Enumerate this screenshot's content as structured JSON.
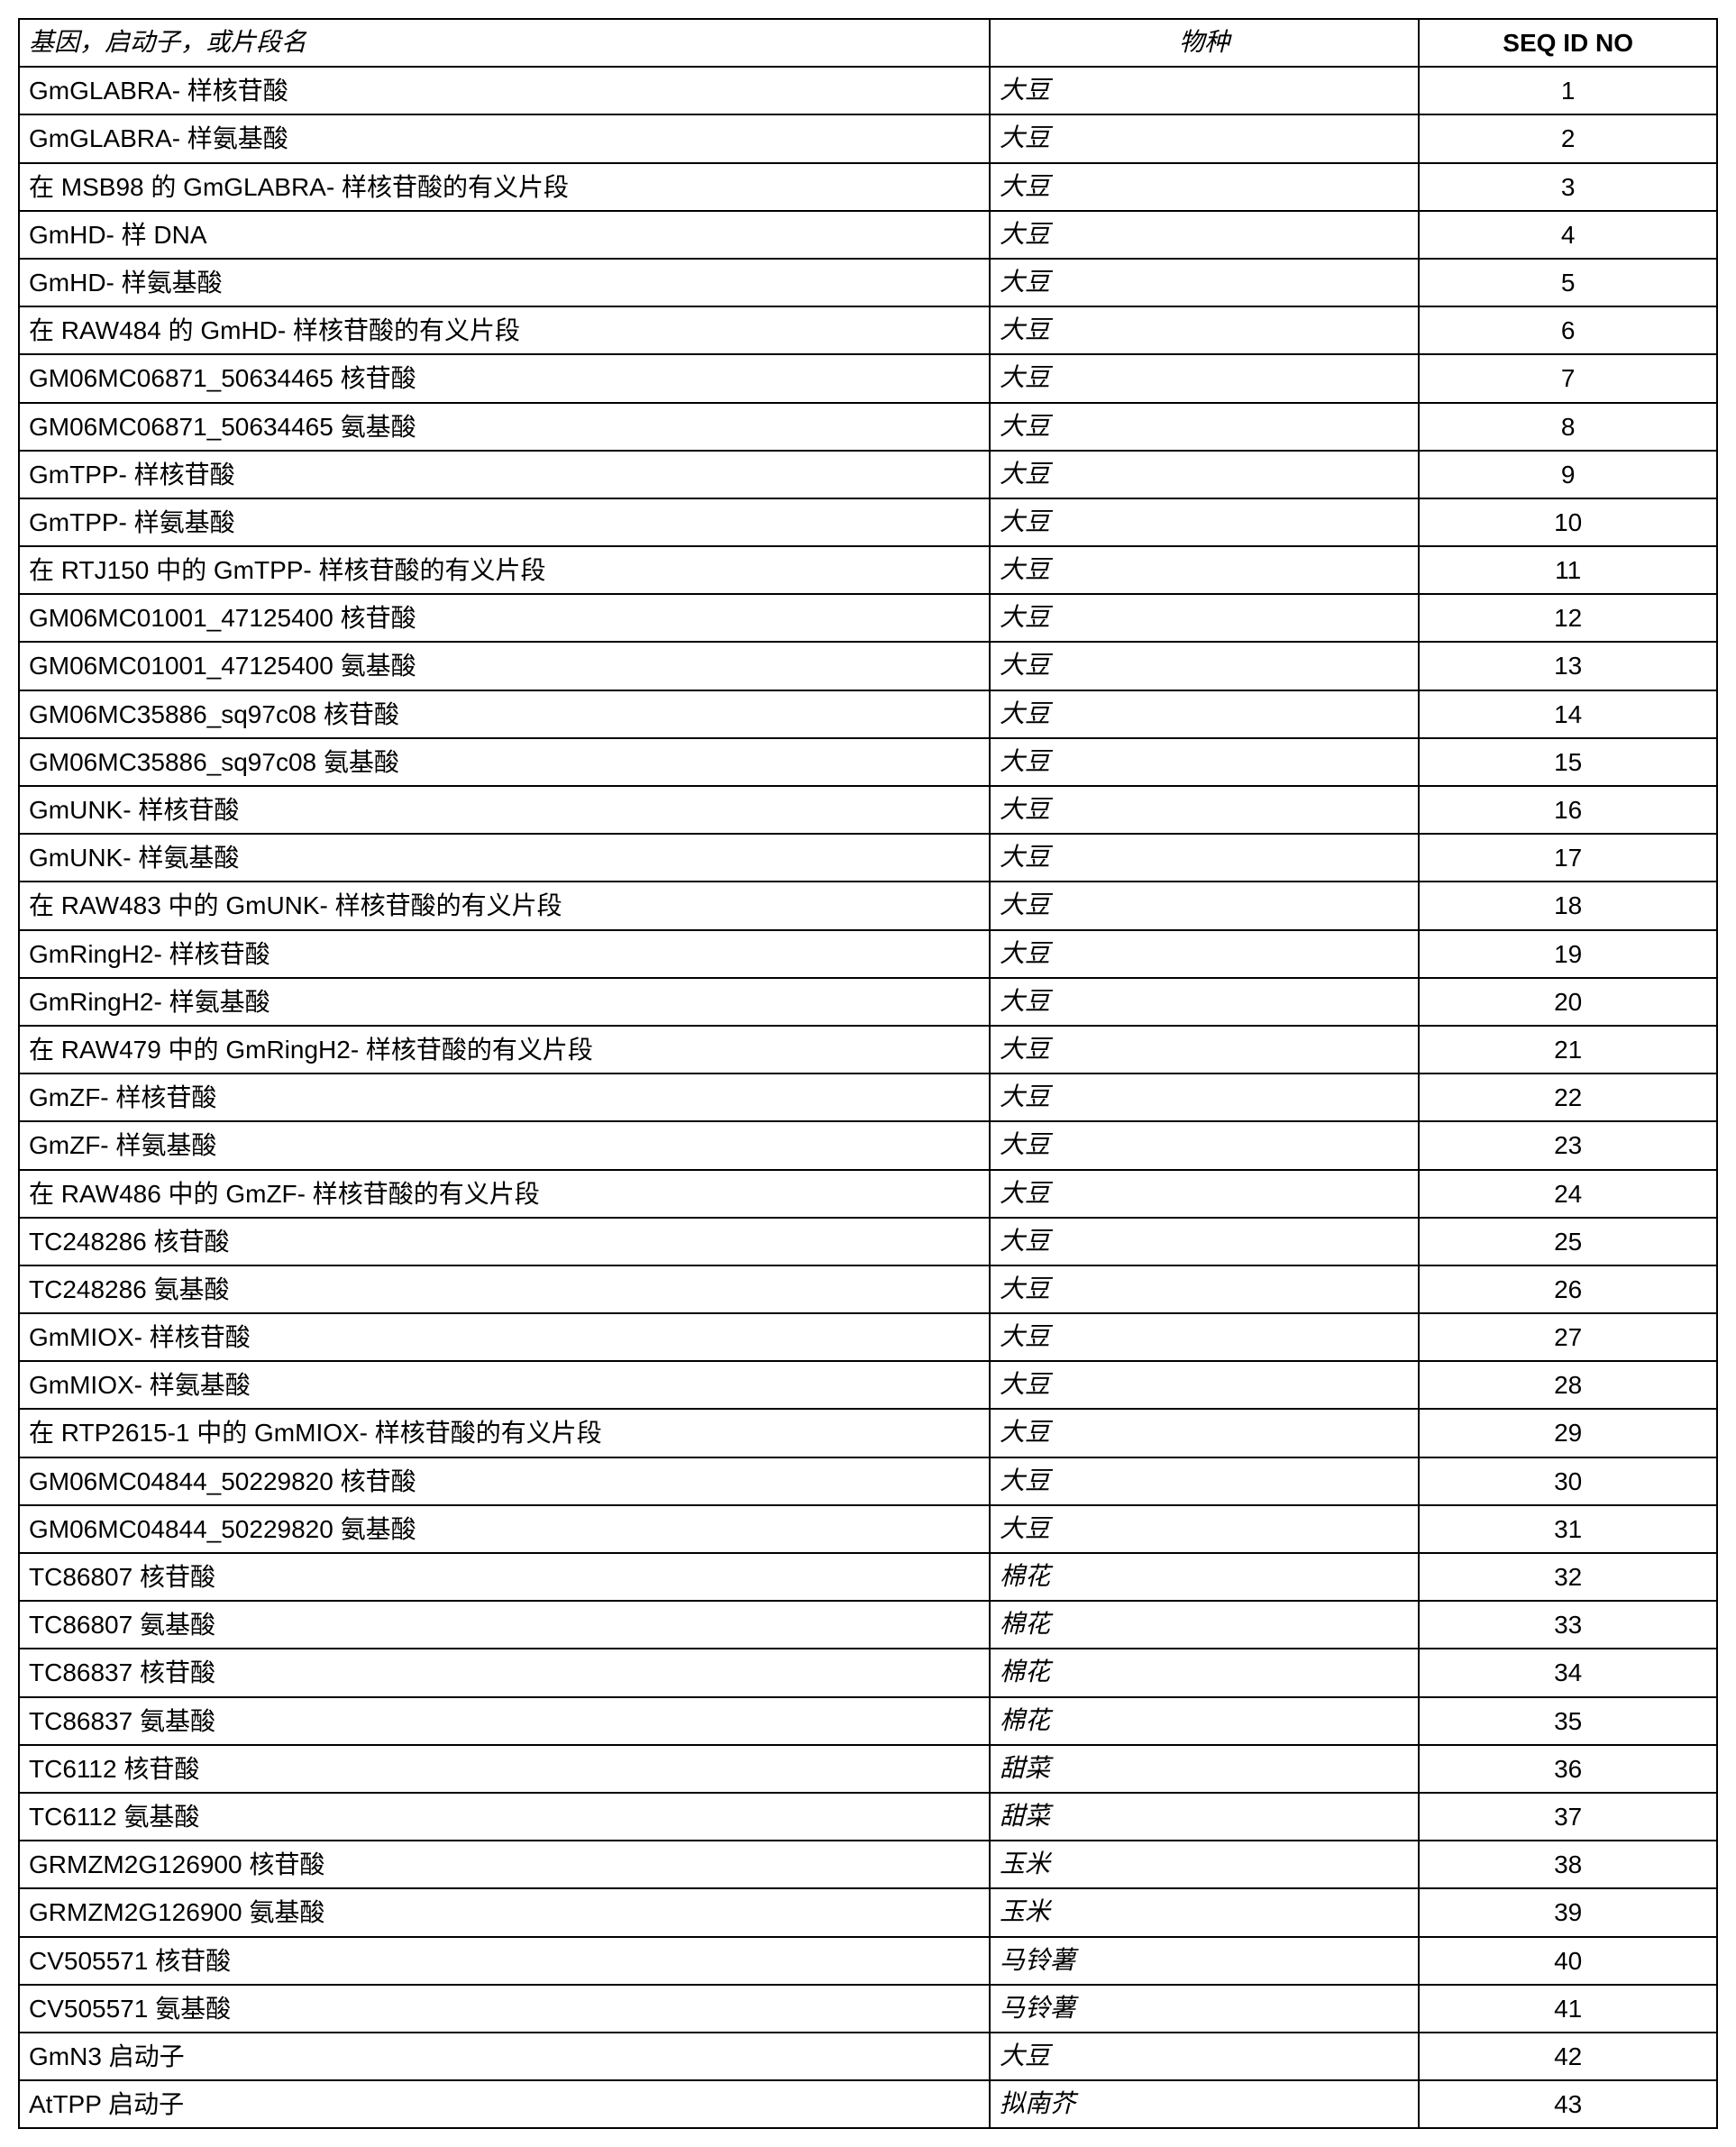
{
  "table": {
    "headers": {
      "name": "基因，启动子，或片段名",
      "species": "物种",
      "seq": "SEQ ID NO"
    },
    "rows": [
      {
        "name": "GmGLABRA- 样核苷酸",
        "species": "大豆",
        "seq": "1"
      },
      {
        "name": "GmGLABRA- 样氨基酸",
        "species": "大豆",
        "seq": "2"
      },
      {
        "name": "在 MSB98 的 GmGLABRA- 样核苷酸的有义片段",
        "species": "大豆",
        "seq": "3"
      },
      {
        "name": "GmHD- 样 DNA",
        "species": "大豆",
        "seq": "4"
      },
      {
        "name": "GmHD- 样氨基酸",
        "species": "大豆",
        "seq": "5"
      },
      {
        "name": "在 RAW484 的 GmHD- 样核苷酸的有义片段",
        "species": "大豆",
        "seq": "6"
      },
      {
        "name": "GM06MC06871_50634465 核苷酸",
        "species": "大豆",
        "seq": "7"
      },
      {
        "name": "GM06MC06871_50634465 氨基酸",
        "species": "大豆",
        "seq": "8"
      },
      {
        "name": "GmTPP- 样核苷酸",
        "species": "大豆",
        "seq": "9"
      },
      {
        "name": "GmTPP- 样氨基酸",
        "species": "大豆",
        "seq": "10"
      },
      {
        "name": "在 RTJ150 中的 GmTPP- 样核苷酸的有义片段",
        "species": "大豆",
        "seq": "11"
      },
      {
        "name": "GM06MC01001_47125400 核苷酸",
        "species": "大豆",
        "seq": "12"
      },
      {
        "name": "GM06MC01001_47125400 氨基酸",
        "species": "大豆",
        "seq": "13"
      },
      {
        "name": "GM06MC35886_sq97c08 核苷酸",
        "species": "大豆",
        "seq": "14"
      },
      {
        "name": "GM06MC35886_sq97c08 氨基酸",
        "species": "大豆",
        "seq": "15"
      },
      {
        "name": "GmUNK- 样核苷酸",
        "species": "大豆",
        "seq": "16"
      },
      {
        "name": "GmUNK- 样氨基酸",
        "species": "大豆",
        "seq": "17"
      },
      {
        "name": "在 RAW483 中的 GmUNK- 样核苷酸的有义片段",
        "species": "大豆",
        "seq": "18"
      },
      {
        "name": "GmRingH2- 样核苷酸",
        "species": "大豆",
        "seq": "19"
      },
      {
        "name": "GmRingH2- 样氨基酸",
        "species": "大豆",
        "seq": "20"
      },
      {
        "name": "在 RAW479 中的 GmRingH2- 样核苷酸的有义片段",
        "species": "大豆",
        "seq": "21"
      },
      {
        "name": "GmZF- 样核苷酸",
        "species": "大豆",
        "seq": "22"
      },
      {
        "name": "GmZF- 样氨基酸",
        "species": "大豆",
        "seq": "23"
      },
      {
        "name": "在 RAW486 中的 GmZF- 样核苷酸的有义片段",
        "species": "大豆",
        "seq": "24"
      },
      {
        "name": "TC248286 核苷酸",
        "species": "大豆",
        "seq": "25"
      },
      {
        "name": "TC248286 氨基酸",
        "species": "大豆",
        "seq": "26"
      },
      {
        "name": "GmMIOX- 样核苷酸",
        "species": "大豆",
        "seq": "27"
      },
      {
        "name": "GmMIOX- 样氨基酸",
        "species": "大豆",
        "seq": "28"
      },
      {
        "name": "在 RTP2615-1 中的 GmMIOX- 样核苷酸的有义片段",
        "species": "大豆",
        "seq": "29"
      },
      {
        "name": "GM06MC04844_50229820 核苷酸",
        "species": "大豆",
        "seq": "30"
      },
      {
        "name": "GM06MC04844_50229820 氨基酸",
        "species": "大豆",
        "seq": "31"
      },
      {
        "name": "TC86807 核苷酸",
        "species": "棉花",
        "seq": "32"
      },
      {
        "name": "TC86807 氨基酸",
        "species": "棉花",
        "seq": "33"
      },
      {
        "name": "TC86837 核苷酸",
        "species": "棉花",
        "seq": "34"
      },
      {
        "name": "TC86837 氨基酸",
        "species": "棉花",
        "seq": "35"
      },
      {
        "name": "TC6112 核苷酸",
        "species": "甜菜",
        "seq": "36"
      },
      {
        "name": "TC6112 氨基酸",
        "species": "甜菜",
        "seq": "37"
      },
      {
        "name": "GRMZM2G126900 核苷酸",
        "species": "玉米",
        "seq": "38"
      },
      {
        "name": "GRMZM2G126900 氨基酸",
        "species": "玉米",
        "seq": "39"
      },
      {
        "name": "CV505571 核苷酸",
        "species": "马铃薯",
        "seq": "40"
      },
      {
        "name": "CV505571 氨基酸",
        "species": "马铃薯",
        "seq": "41"
      },
      {
        "name": "GmN3 启动子",
        "species": "大豆",
        "seq": "42"
      },
      {
        "name": "AtTPP 启动子",
        "species": "拟南芥",
        "seq": "43"
      }
    ]
  }
}
